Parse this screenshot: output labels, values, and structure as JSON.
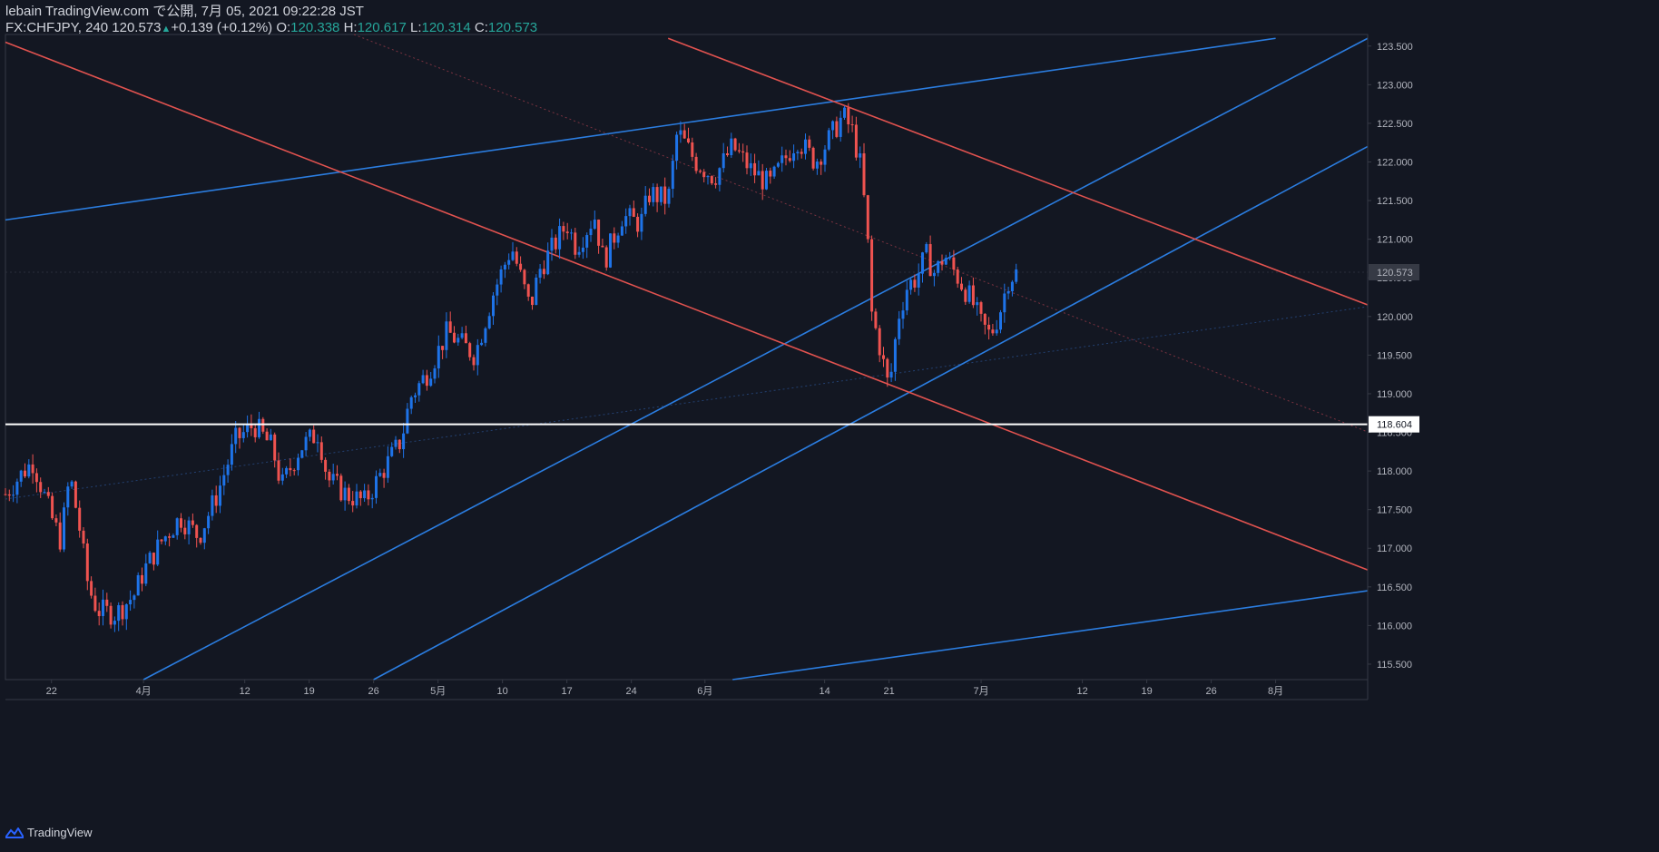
{
  "header": {
    "line1": "lebain TradingView.com で公開, 7月 05, 2021 09:22:28 JST",
    "symbol": "FX:CHFJPY, 240",
    "last": "120.573",
    "change": "+0.139 (+0.12%)",
    "o_label": "O:",
    "o_value": "120.338",
    "h_label": "H:",
    "h_value": "120.617",
    "l_label": "L:",
    "l_value": "120.314",
    "c_label": "C:",
    "c_value": "120.573"
  },
  "footer": {
    "brand": "TradingView",
    "logo_icon": "tradingview-logo-icon"
  },
  "colors": {
    "background": "#131722",
    "axis": "#363a45",
    "up": "#1e73e8",
    "down": "#ef5350",
    "blue_line": "#2b7de0",
    "red_line": "#e0524f",
    "marker_line": "#ffffff",
    "price_tag": "#363a45"
  },
  "chart_data": {
    "type": "candlestick",
    "symbol": "FX:CHFJPY",
    "timeframe": "240",
    "ylim": [
      115.3,
      123.65
    ],
    "y_ticks": [
      115.5,
      116.0,
      116.5,
      117.0,
      117.5,
      118.0,
      118.5,
      119.0,
      119.5,
      120.0,
      120.5,
      121.0,
      121.5,
      122.0,
      122.5,
      123.0,
      123.5
    ],
    "y_tick_labels": [
      "115.500",
      "116.000",
      "116.500",
      "117.000",
      "117.500",
      "118.000",
      "118.500",
      "119.000",
      "119.500",
      "120.000",
      "120.500",
      "121.000",
      "121.500",
      "122.000",
      "122.500",
      "123.000",
      "123.500"
    ],
    "x_range": [
      "2021-03-17",
      "2021-08-12"
    ],
    "x_ticks": [
      {
        "date": "2021-03-22",
        "label": "22"
      },
      {
        "date": "2021-04-01",
        "label": "4月"
      },
      {
        "date": "2021-04-12",
        "label": "12"
      },
      {
        "date": "2021-04-19",
        "label": "19"
      },
      {
        "date": "2021-04-26",
        "label": "26"
      },
      {
        "date": "2021-05-03",
        "label": "5月"
      },
      {
        "date": "2021-05-10",
        "label": "10"
      },
      {
        "date": "2021-05-17",
        "label": "17"
      },
      {
        "date": "2021-05-24",
        "label": "24"
      },
      {
        "date": "2021-06-01",
        "label": "6月"
      },
      {
        "date": "2021-06-14",
        "label": "14"
      },
      {
        "date": "2021-06-21",
        "label": "21"
      },
      {
        "date": "2021-07-01",
        "label": "7月"
      },
      {
        "date": "2021-07-12",
        "label": "12"
      },
      {
        "date": "2021-07-19",
        "label": "19"
      },
      {
        "date": "2021-07-26",
        "label": "26"
      },
      {
        "date": "2021-08-02",
        "label": "8月"
      }
    ],
    "price_path": [
      {
        "date": "2021-03-17",
        "price": 117.7
      },
      {
        "date": "2021-03-19",
        "price": 118.0
      },
      {
        "date": "2021-03-20",
        "price": 118.12
      },
      {
        "date": "2021-03-22",
        "price": 117.4
      },
      {
        "date": "2021-03-23",
        "price": 117.1
      },
      {
        "date": "2021-03-24",
        "price": 117.95
      },
      {
        "date": "2021-03-25",
        "price": 117.3
      },
      {
        "date": "2021-03-26",
        "price": 116.5
      },
      {
        "date": "2021-03-27",
        "price": 116.2
      },
      {
        "date": "2021-03-29",
        "price": 116.15
      },
      {
        "date": "2021-03-31",
        "price": 116.4
      },
      {
        "date": "2021-04-01",
        "price": 116.7
      },
      {
        "date": "2021-04-03",
        "price": 117.1
      },
      {
        "date": "2021-04-05",
        "price": 117.4
      },
      {
        "date": "2021-04-07",
        "price": 117.15
      },
      {
        "date": "2021-04-09",
        "price": 117.7
      },
      {
        "date": "2021-04-11",
        "price": 118.4
      },
      {
        "date": "2021-04-13",
        "price": 118.6
      },
      {
        "date": "2021-04-15",
        "price": 118.3
      },
      {
        "date": "2021-04-16",
        "price": 117.8
      },
      {
        "date": "2021-04-18",
        "price": 118.3
      },
      {
        "date": "2021-04-20",
        "price": 118.5
      },
      {
        "date": "2021-04-21",
        "price": 117.9
      },
      {
        "date": "2021-04-23",
        "price": 117.7
      },
      {
        "date": "2021-04-25",
        "price": 117.6
      },
      {
        "date": "2021-04-27",
        "price": 118.0
      },
      {
        "date": "2021-04-29",
        "price": 118.4
      },
      {
        "date": "2021-04-30",
        "price": 118.95
      },
      {
        "date": "2021-05-02",
        "price": 119.3
      },
      {
        "date": "2021-05-04",
        "price": 119.8
      },
      {
        "date": "2021-05-06",
        "price": 119.6
      },
      {
        "date": "2021-05-07",
        "price": 119.5
      },
      {
        "date": "2021-05-09",
        "price": 120.3
      },
      {
        "date": "2021-05-11",
        "price": 120.9
      },
      {
        "date": "2021-05-13",
        "price": 120.1
      },
      {
        "date": "2021-05-14",
        "price": 120.6
      },
      {
        "date": "2021-05-17",
        "price": 121.2
      },
      {
        "date": "2021-05-18",
        "price": 120.9
      },
      {
        "date": "2021-05-20",
        "price": 121.3
      },
      {
        "date": "2021-05-21",
        "price": 120.7
      },
      {
        "date": "2021-05-23",
        "price": 121.3
      },
      {
        "date": "2021-05-25",
        "price": 121.2
      },
      {
        "date": "2021-05-26",
        "price": 121.6
      },
      {
        "date": "2021-05-28",
        "price": 121.5
      },
      {
        "date": "2021-05-29",
        "price": 122.4
      },
      {
        "date": "2021-05-31",
        "price": 122.0
      },
      {
        "date": "2021-06-02",
        "price": 121.8
      },
      {
        "date": "2021-06-04",
        "price": 122.2
      },
      {
        "date": "2021-06-06",
        "price": 121.9
      },
      {
        "date": "2021-06-08",
        "price": 121.7
      },
      {
        "date": "2021-06-10",
        "price": 122.1
      },
      {
        "date": "2021-06-11",
        "price": 122.3
      },
      {
        "date": "2021-06-13",
        "price": 122.0
      },
      {
        "date": "2021-06-15",
        "price": 122.4
      },
      {
        "date": "2021-06-16",
        "price": 122.6
      },
      {
        "date": "2021-06-17",
        "price": 122.4
      },
      {
        "date": "2021-06-18",
        "price": 121.9
      },
      {
        "date": "2021-06-19",
        "price": 120.5
      },
      {
        "date": "2021-06-19",
        "price": 120.1
      },
      {
        "date": "2021-06-20",
        "price": 119.6
      },
      {
        "date": "2021-06-21",
        "price": 119.05
      },
      {
        "date": "2021-06-22",
        "price": 120.0
      },
      {
        "date": "2021-06-23",
        "price": 120.4
      },
      {
        "date": "2021-06-24",
        "price": 120.5
      },
      {
        "date": "2021-06-25",
        "price": 120.8
      },
      {
        "date": "2021-06-26",
        "price": 120.55
      },
      {
        "date": "2021-06-27",
        "price": 120.8
      },
      {
        "date": "2021-06-29",
        "price": 120.4
      },
      {
        "date": "2021-06-30",
        "price": 120.2
      },
      {
        "date": "2021-07-01",
        "price": 119.9
      },
      {
        "date": "2021-07-02",
        "price": 119.75
      },
      {
        "date": "2021-07-03",
        "price": 120.05
      },
      {
        "date": "2021-07-04",
        "price": 120.5
      },
      {
        "date": "2021-07-05",
        "price": 120.573
      }
    ],
    "current_price": 120.573,
    "current_price_label": "120.573",
    "marker_price": 118.604,
    "marker_price_label": "118.604",
    "trendlines": [
      {
        "color": "blue",
        "from": {
          "date": "2021-03-17",
          "price": 121.25
        },
        "to": {
          "date": "2021-08-02",
          "price": 123.6
        }
      },
      {
        "color": "blue",
        "from": {
          "date": "2021-04-01",
          "price": 115.3
        },
        "to": {
          "date": "2021-08-12",
          "price": 123.6
        }
      },
      {
        "color": "blue",
        "from": {
          "date": "2021-04-26",
          "price": 115.3
        },
        "to": {
          "date": "2021-08-12",
          "price": 122.2
        }
      },
      {
        "color": "blue",
        "from": {
          "date": "2021-06-04",
          "price": 115.3
        },
        "to": {
          "date": "2021-08-12",
          "price": 116.45
        }
      },
      {
        "color": "red",
        "from": {
          "date": "2021-03-17",
          "price": 123.55
        },
        "to": {
          "date": "2021-08-12",
          "price": 116.72
        }
      },
      {
        "color": "red",
        "from": {
          "date": "2021-05-28",
          "price": 123.6
        },
        "to": {
          "date": "2021-08-12",
          "price": 120.15
        }
      }
    ]
  }
}
